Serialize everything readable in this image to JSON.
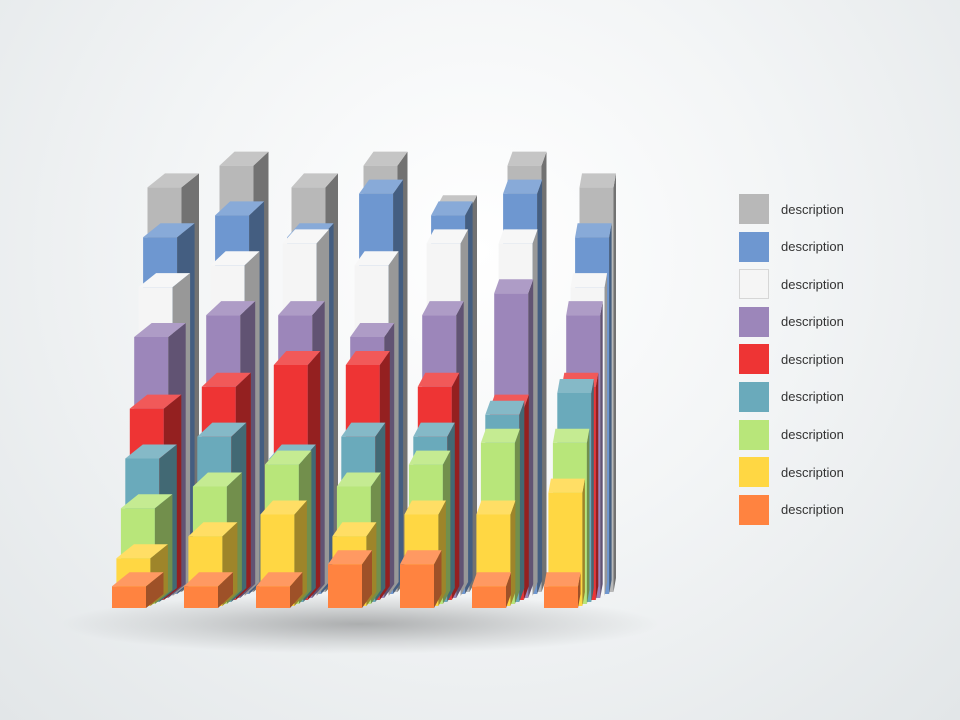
{
  "legend": {
    "items": [
      {
        "label": "description",
        "color": "#B8B8B8"
      },
      {
        "label": "description",
        "color": "#6E97D0"
      },
      {
        "label": "description",
        "color": "#F5F5F5"
      },
      {
        "label": "description",
        "color": "#9C86BA"
      },
      {
        "label": "description",
        "color": "#EE3434"
      },
      {
        "label": "description",
        "color": "#6AAABB"
      },
      {
        "label": "description",
        "color": "#B8E67A"
      },
      {
        "label": "description",
        "color": "#FFD743"
      },
      {
        "label": "description",
        "color": "#FF8340"
      }
    ]
  },
  "chart_data": {
    "type": "bar",
    "variant": "3d-column-grid",
    "title": "",
    "xlabel": "",
    "ylabel": "",
    "axes_visible": false,
    "grid": false,
    "legend_position": "right",
    "series": [
      {
        "name": "description",
        "color": "#B8B8B8",
        "values": [
          9,
          10,
          9,
          10,
          8,
          10,
          9
        ]
      },
      {
        "name": "description",
        "color": "#6E97D0",
        "values": [
          8,
          9,
          8,
          10,
          9,
          10,
          8
        ]
      },
      {
        "name": "description",
        "color": "#F5F5F5",
        "values": [
          7,
          8,
          9,
          8,
          9,
          9,
          7
        ]
      },
      {
        "name": "description",
        "color": "#9C86BA",
        "values": [
          6,
          7,
          7,
          6,
          7,
          8,
          7
        ]
      },
      {
        "name": "description",
        "color": "#EE3434",
        "values": [
          4,
          5,
          6,
          6,
          5,
          4,
          5
        ]
      },
      {
        "name": "description",
        "color": "#6AAABB",
        "values": [
          3,
          4,
          3,
          4,
          4,
          5,
          6
        ]
      },
      {
        "name": "description",
        "color": "#B8E67A",
        "values": [
          2,
          3,
          4,
          3,
          4,
          5,
          5
        ]
      },
      {
        "name": "description",
        "color": "#FFD743",
        "values": [
          1,
          2,
          3,
          2,
          3,
          3,
          4
        ]
      },
      {
        "name": "description",
        "color": "#FF8340",
        "values": [
          1,
          1,
          1,
          2,
          2,
          1,
          1
        ]
      }
    ]
  }
}
